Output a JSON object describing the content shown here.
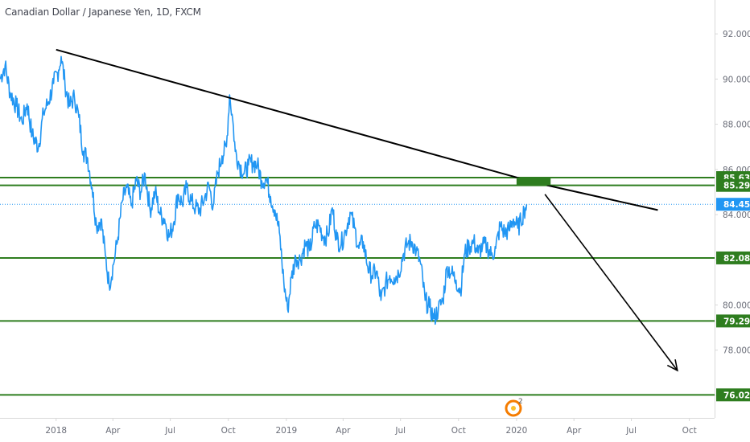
{
  "chart_title": "Canadian Dollar / Japanese Yen, 1D, FXCM",
  "colors": {
    "price_line": "#2196f3",
    "level_line": "#2e7d1f",
    "level_tag": "#2e7d1f",
    "current_tag": "#2196f3",
    "trendline": "#000000",
    "axis_text": "#6a6d78",
    "axis_border": "#d9d9d9",
    "event_marker": "#f57c00"
  },
  "event_marker": {
    "icon": "calendar-event-icon",
    "label": "2"
  },
  "chart_data": {
    "type": "line",
    "title": "Canadian Dollar / Japanese Yen, 1D, FXCM",
    "xlabel": "",
    "ylabel": "",
    "ylim": [
      75.0,
      93.5
    ],
    "xlim": [
      "2017-10-04",
      "2020-11-10"
    ],
    "grid": false,
    "y_ticks": [
      "92.000",
      "90.000",
      "88.000",
      "86.000",
      "84.000",
      "82.000",
      "80.000",
      "78.000",
      "76.000"
    ],
    "x_ticks": [
      {
        "label": "2018",
        "date": "2018-01-01"
      },
      {
        "label": "Apr",
        "date": "2018-04-01"
      },
      {
        "label": "Jul",
        "date": "2018-07-01"
      },
      {
        "label": "Oct",
        "date": "2018-10-01"
      },
      {
        "label": "2019",
        "date": "2019-01-01"
      },
      {
        "label": "Apr",
        "date": "2019-04-01"
      },
      {
        "label": "Jul",
        "date": "2019-07-01"
      },
      {
        "label": "Oct",
        "date": "2019-10-01"
      },
      {
        "label": "2020",
        "date": "2020-01-01"
      },
      {
        "label": "Apr",
        "date": "2020-04-01"
      },
      {
        "label": "Jul",
        "date": "2020-07-01"
      },
      {
        "label": "Oct",
        "date": "2020-10-01"
      }
    ],
    "series": [
      {
        "data": [
          [
            "2017-10-04",
            90.0
          ],
          [
            "2017-10-12",
            90.6
          ],
          [
            "2017-10-20",
            89.4
          ],
          [
            "2017-10-30",
            88.8
          ],
          [
            "2017-11-08",
            88.1
          ],
          [
            "2017-11-16",
            88.9
          ],
          [
            "2017-11-24",
            87.5
          ],
          [
            "2017-12-04",
            87.0
          ],
          [
            "2017-12-12",
            88.5
          ],
          [
            "2017-12-20",
            89.0
          ],
          [
            "2017-12-28",
            89.8
          ],
          [
            "2018-01-05",
            90.4
          ],
          [
            "2018-01-09",
            91.0
          ],
          [
            "2018-01-15",
            89.8
          ],
          [
            "2018-01-22",
            88.8
          ],
          [
            "2018-01-30",
            89.2
          ],
          [
            "2018-02-06",
            88.3
          ],
          [
            "2018-02-13",
            86.8
          ],
          [
            "2018-02-20",
            86.5
          ],
          [
            "2018-02-27",
            85.2
          ],
          [
            "2018-03-06",
            83.5
          ],
          [
            "2018-03-13",
            83.8
          ],
          [
            "2018-03-20",
            82.2
          ],
          [
            "2018-03-26",
            80.9
          ],
          [
            "2018-04-02",
            81.8
          ],
          [
            "2018-04-09",
            83.0
          ],
          [
            "2018-04-16",
            84.6
          ],
          [
            "2018-04-23",
            85.2
          ],
          [
            "2018-04-30",
            84.4
          ],
          [
            "2018-05-08",
            85.5
          ],
          [
            "2018-05-15",
            85.0
          ],
          [
            "2018-05-22",
            85.8
          ],
          [
            "2018-05-30",
            84.2
          ],
          [
            "2018-06-07",
            85.0
          ],
          [
            "2018-06-15",
            84.0
          ],
          [
            "2018-06-22",
            83.8
          ],
          [
            "2018-06-29",
            83.0
          ],
          [
            "2018-07-06",
            83.6
          ],
          [
            "2018-07-13",
            84.9
          ],
          [
            "2018-07-20",
            84.5
          ],
          [
            "2018-07-27",
            85.2
          ],
          [
            "2018-08-03",
            84.6
          ],
          [
            "2018-08-10",
            84.3
          ],
          [
            "2018-08-17",
            84.2
          ],
          [
            "2018-08-24",
            84.7
          ],
          [
            "2018-08-31",
            85.3
          ],
          [
            "2018-09-07",
            84.4
          ],
          [
            "2018-09-14",
            85.8
          ],
          [
            "2018-09-21",
            86.6
          ],
          [
            "2018-09-28",
            87.0
          ],
          [
            "2018-10-03",
            89.3
          ],
          [
            "2018-10-08",
            88.2
          ],
          [
            "2018-10-12",
            86.8
          ],
          [
            "2018-10-19",
            86.2
          ],
          [
            "2018-10-26",
            85.8
          ],
          [
            "2018-11-02",
            86.2
          ],
          [
            "2018-11-09",
            86.3
          ],
          [
            "2018-11-16",
            86.2
          ],
          [
            "2018-11-23",
            85.5
          ],
          [
            "2018-11-30",
            85.6
          ],
          [
            "2018-12-07",
            84.8
          ],
          [
            "2018-12-14",
            84.2
          ],
          [
            "2018-12-21",
            83.2
          ],
          [
            "2018-12-28",
            81.0
          ],
          [
            "2019-01-03",
            79.8
          ],
          [
            "2019-01-09",
            81.2
          ],
          [
            "2019-01-16",
            82.1
          ],
          [
            "2019-01-23",
            82.0
          ],
          [
            "2019-01-31",
            82.7
          ],
          [
            "2019-02-07",
            82.4
          ],
          [
            "2019-02-15",
            83.5
          ],
          [
            "2019-02-22",
            83.5
          ],
          [
            "2019-03-01",
            83.0
          ],
          [
            "2019-03-08",
            83.1
          ],
          [
            "2019-03-15",
            84.3
          ],
          [
            "2019-03-22",
            82.9
          ],
          [
            "2019-03-29",
            82.7
          ],
          [
            "2019-04-05",
            83.3
          ],
          [
            "2019-04-12",
            84.1
          ],
          [
            "2019-04-19",
            83.4
          ],
          [
            "2019-04-26",
            82.5
          ],
          [
            "2019-05-03",
            82.8
          ],
          [
            "2019-05-10",
            81.7
          ],
          [
            "2019-05-17",
            81.3
          ],
          [
            "2019-05-24",
            81.5
          ],
          [
            "2019-05-31",
            80.2
          ],
          [
            "2019-06-07",
            80.9
          ],
          [
            "2019-06-14",
            81.3
          ],
          [
            "2019-06-21",
            81.2
          ],
          [
            "2019-06-28",
            81.4
          ],
          [
            "2019-07-05",
            82.2
          ],
          [
            "2019-07-12",
            82.7
          ],
          [
            "2019-07-19",
            82.8
          ],
          [
            "2019-07-26",
            82.4
          ],
          [
            "2019-08-02",
            81.8
          ],
          [
            "2019-08-09",
            80.2
          ],
          [
            "2019-08-16",
            79.9
          ],
          [
            "2019-08-23",
            79.4
          ],
          [
            "2019-08-30",
            79.8
          ],
          [
            "2019-09-06",
            80.2
          ],
          [
            "2019-09-13",
            81.7
          ],
          [
            "2019-09-20",
            81.4
          ],
          [
            "2019-09-27",
            81.1
          ],
          [
            "2019-10-04",
            80.6
          ],
          [
            "2019-10-11",
            82.3
          ],
          [
            "2019-10-18",
            82.6
          ],
          [
            "2019-10-25",
            82.8
          ],
          [
            "2019-11-01",
            82.3
          ],
          [
            "2019-11-08",
            82.6
          ],
          [
            "2019-11-15",
            82.6
          ],
          [
            "2019-11-22",
            82.2
          ],
          [
            "2019-11-29",
            82.5
          ],
          [
            "2019-12-06",
            83.5
          ],
          [
            "2019-12-13",
            83.2
          ],
          [
            "2019-12-20",
            83.3
          ],
          [
            "2019-12-27",
            83.8
          ],
          [
            "2020-01-03",
            83.4
          ],
          [
            "2020-01-08",
            83.7
          ],
          [
            "2020-01-13",
            84.2
          ],
          [
            "2020-01-17",
            84.456
          ]
        ]
      }
    ],
    "levels": [
      {
        "value": 85.637,
        "label": "85.637"
      },
      {
        "value": 85.293,
        "label": "85.293"
      },
      {
        "value": 82.082,
        "label": "82.082"
      },
      {
        "value": 79.291,
        "label": "79.291"
      },
      {
        "value": 76.02,
        "label": "76.020"
      }
    ],
    "current_price": {
      "value": 84.456,
      "label": "84.456"
    },
    "annotations": {
      "trendline": {
        "from": [
          "2018-01-01",
          91.3
        ],
        "to": [
          "2020-01-07",
          85.6
        ]
      },
      "trendline_extension": {
        "from": [
          "2020-02-18",
          85.3
        ],
        "to": [
          "2020-08-12",
          84.2
        ]
      },
      "projection_arrow": {
        "from": [
          "2020-02-15",
          84.9
        ],
        "to": [
          "2020-09-12",
          77.1
        ]
      },
      "zone_box": {
        "from": [
          "2020-01-01",
          85.637
        ],
        "to": [
          "2020-02-24",
          85.293
        ]
      }
    }
  }
}
